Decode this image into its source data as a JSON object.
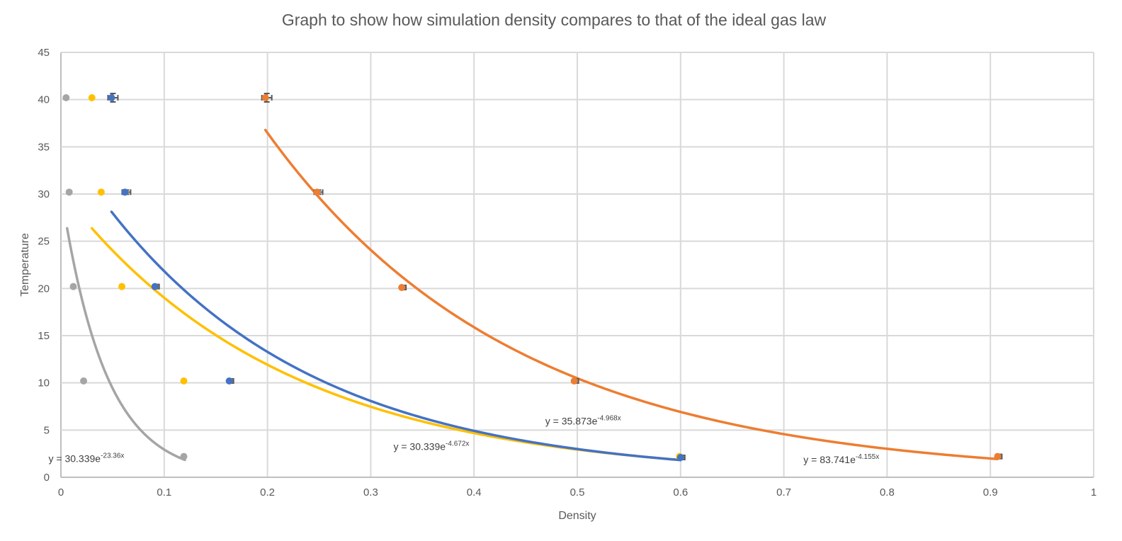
{
  "chart_data": {
    "type": "scatter",
    "title": "Graph to show how simulation density compares to that of the ideal gas law",
    "xlabel": "Density",
    "ylabel": "Temperature",
    "xlim": [
      0,
      1
    ],
    "ylim": [
      0,
      45
    ],
    "xticks": [
      "0",
      "0.1",
      "0.2",
      "0.3",
      "0.4",
      "0.5",
      "0.6",
      "0.7",
      "0.8",
      "0.9",
      "1"
    ],
    "yticks": [
      "0",
      "5",
      "10",
      "15",
      "20",
      "25",
      "30",
      "35",
      "40",
      "45"
    ],
    "grid": true,
    "legend": "none",
    "series": [
      {
        "name": "grey",
        "color": "#a5a5a5",
        "x": [
          0.005,
          0.008,
          0.012,
          0.022,
          0.119
        ],
        "y": [
          40.2,
          30.2,
          20.2,
          10.2,
          2.2
        ],
        "error_bars": false,
        "trendline": {
          "type": "exponential",
          "a": 30.339,
          "b": -23.36,
          "x_range": [
            0.006,
            0.12
          ],
          "equation": "y = 30.339e",
          "exponent": "-23.36x"
        }
      },
      {
        "name": "yellow",
        "color": "#ffc000",
        "x": [
          0.03,
          0.039,
          0.059,
          0.119,
          0.599
        ],
        "y": [
          40.2,
          30.2,
          20.2,
          10.2,
          2.2
        ],
        "error_bars": false,
        "trendline": {
          "type": "exponential",
          "a": 30.339,
          "b": -4.672,
          "x_range": [
            0.03,
            0.6
          ],
          "equation": "y = 30.339e",
          "exponent": "-4.672x"
        }
      },
      {
        "name": "blue",
        "color": "#4472c4",
        "x": [
          0.049,
          0.062,
          0.091,
          0.163,
          0.6
        ],
        "y": [
          40.2,
          30.2,
          20.2,
          10.2,
          2.1
        ],
        "error_bars": true,
        "trendline": {
          "type": "exponential",
          "a": 35.873,
          "b": -4.968,
          "x_range": [
            0.049,
            0.6
          ],
          "equation": "y = 35.873e",
          "exponent": "-4.968x"
        }
      },
      {
        "name": "orange",
        "color": "#ed7d31",
        "x": [
          0.198,
          0.248,
          0.33,
          0.497,
          0.907
        ],
        "y": [
          40.2,
          30.2,
          20.1,
          10.2,
          2.2
        ],
        "error_bars": true,
        "trendline": {
          "type": "exponential",
          "a": 83.741,
          "b": -4.155,
          "x_range": [
            0.198,
            0.907
          ],
          "equation": "y = 83.741e",
          "exponent": "-4.155x"
        }
      }
    ],
    "annotations": [
      {
        "series": "grey",
        "anchor": [
          -0.012,
          1.6
        ]
      },
      {
        "series": "yellow",
        "anchor": [
          0.322,
          2.9
        ]
      },
      {
        "series": "blue",
        "anchor": [
          0.469,
          5.6
        ]
      },
      {
        "series": "orange",
        "anchor": [
          0.719,
          1.5
        ]
      }
    ]
  }
}
